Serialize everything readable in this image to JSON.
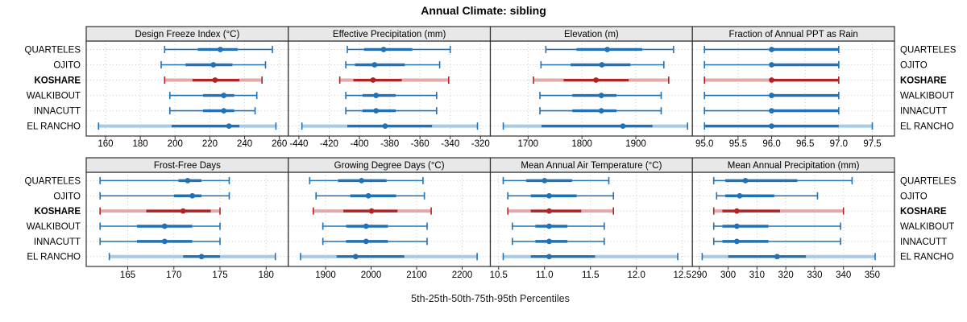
{
  "title": "Annual Climate: sibling",
  "caption": "5th-25th-50th-75th-95th Percentiles",
  "sites": [
    "QUARTELES",
    "OJITO",
    "KOSHARE",
    "WALKIBOUT",
    "INNACUTT",
    "EL RANCHO"
  ],
  "highlight_site": "KOSHARE",
  "band_style_sites": [
    "KOSHARE",
    "EL RANCHO"
  ],
  "colors": {
    "blue": "#2171B5",
    "blue_light": "#A6CBE3",
    "red": "#B22222",
    "red_light": "#E2A9A9",
    "strip_bg": "#E8E8E8",
    "panel_border": "#2F2F2F",
    "grid": "#CBCBCB",
    "text": "#000000"
  },
  "chart_data": [
    {
      "type": "dotplot-interval",
      "id": "design-freeze-index",
      "row": 0,
      "col": 0,
      "title": "Design Freeze Index (°C)",
      "xlim": [
        148.9,
        265.1
      ],
      "ticks": [
        160,
        180,
        200,
        220,
        240,
        260
      ],
      "tick_labels": [
        "160",
        "180",
        "200",
        "220",
        "240",
        "260"
      ],
      "series": [
        {
          "name": "QUARTELES",
          "p": [
            194,
            213,
            226,
            236,
            256
          ]
        },
        {
          "name": "OJITO",
          "p": [
            192,
            206,
            222,
            233,
            252
          ]
        },
        {
          "name": "KOSHARE",
          "p": [
            194,
            210,
            223,
            237,
            250
          ]
        },
        {
          "name": "WALKIBOUT",
          "p": [
            197,
            216,
            228,
            234,
            247
          ]
        },
        {
          "name": "INNACUTT",
          "p": [
            197,
            216,
            228,
            234,
            246
          ]
        },
        {
          "name": "EL RANCHO",
          "p": [
            156,
            198,
            231,
            237,
            258
          ]
        }
      ]
    },
    {
      "type": "dotplot-interval",
      "id": "effective-precipitation",
      "row": 0,
      "col": 1,
      "title": "Effective Precipitation (mm)",
      "xlim": [
        -447,
        -313.5
      ],
      "ticks": [
        -440,
        -420,
        -400,
        -380,
        -360,
        -340,
        -320
      ],
      "tick_labels": [
        "-440",
        "-420",
        "-400",
        "-380",
        "-360",
        "-340",
        "-320"
      ],
      "series": [
        {
          "name": "QUARTELES",
          "p": [
            -408,
            -397,
            -384,
            -365,
            -340
          ]
        },
        {
          "name": "OJITO",
          "p": [
            -409,
            -403,
            -390,
            -370,
            -347
          ]
        },
        {
          "name": "KOSHARE",
          "p": [
            -413,
            -404,
            -391,
            -372,
            -341
          ]
        },
        {
          "name": "WALKIBOUT",
          "p": [
            -409,
            -398,
            -389,
            -376,
            -349
          ]
        },
        {
          "name": "INNACUTT",
          "p": [
            -409,
            -398,
            -389,
            -376,
            -349
          ]
        },
        {
          "name": "EL RANCHO",
          "p": [
            -438,
            -408,
            -383,
            -352,
            -322
          ]
        }
      ]
    },
    {
      "type": "dotplot-interval",
      "id": "elevation",
      "row": 0,
      "col": 2,
      "title": "Elevation (m)",
      "xlim": [
        1630,
        2005
      ],
      "ticks": [
        1700,
        1800,
        1900
      ],
      "tick_labels": [
        "1700",
        "1800",
        "1900"
      ],
      "series": [
        {
          "name": "QUARTELES",
          "p": [
            1733,
            1790,
            1847,
            1912,
            1970
          ]
        },
        {
          "name": "OJITO",
          "p": [
            1724,
            1779,
            1837,
            1890,
            1952
          ]
        },
        {
          "name": "KOSHARE",
          "p": [
            1710,
            1766,
            1826,
            1887,
            1961
          ]
        },
        {
          "name": "WALKIBOUT",
          "p": [
            1722,
            1782,
            1836,
            1864,
            1947
          ]
        },
        {
          "name": "INNACUTT",
          "p": [
            1722,
            1782,
            1836,
            1864,
            1947
          ]
        },
        {
          "name": "EL RANCHO",
          "p": [
            1654,
            1725,
            1876,
            1931,
            1996
          ]
        }
      ]
    },
    {
      "type": "dotplot-interval",
      "id": "fraction-annual-ppt-rain",
      "row": 0,
      "col": 3,
      "title": "Fraction of Annual PPT as Rain",
      "xlim": [
        94.82,
        97.83
      ],
      "ticks": [
        95.0,
        95.5,
        96.0,
        96.5,
        97.0,
        97.5
      ],
      "tick_labels": [
        "95.0",
        "95.5",
        "96.0",
        "96.5",
        "97.0",
        "97.5"
      ],
      "series": [
        {
          "name": "QUARTELES",
          "p": [
            95,
            96,
            96,
            97,
            97
          ]
        },
        {
          "name": "OJITO",
          "p": [
            95,
            96,
            96,
            97,
            97
          ]
        },
        {
          "name": "KOSHARE",
          "p": [
            95,
            96,
            96,
            97,
            97
          ]
        },
        {
          "name": "WALKIBOUT",
          "p": [
            95,
            96,
            96,
            97,
            97
          ]
        },
        {
          "name": "INNACUTT",
          "p": [
            95,
            96,
            96,
            97,
            97
          ]
        },
        {
          "name": "EL RANCHO",
          "p": [
            95,
            95,
            96,
            97,
            97.5
          ]
        }
      ]
    },
    {
      "type": "dotplot-interval",
      "id": "frost-free-days",
      "row": 1,
      "col": 0,
      "title": "Frost-Free Days",
      "xlim": [
        160.5,
        182.4
      ],
      "ticks": [
        165,
        170,
        175,
        180
      ],
      "tick_labels": [
        "165",
        "170",
        "175",
        "180"
      ],
      "series": [
        {
          "name": "QUARTELES",
          "p": [
            162,
            170.5,
            171.5,
            173,
            176
          ]
        },
        {
          "name": "OJITO",
          "p": [
            162,
            170,
            172,
            173,
            176
          ]
        },
        {
          "name": "KOSHARE",
          "p": [
            162,
            167,
            171,
            174,
            175
          ]
        },
        {
          "name": "WALKIBOUT",
          "p": [
            162,
            166,
            169,
            172,
            175
          ]
        },
        {
          "name": "INNACUTT",
          "p": [
            162,
            166,
            169,
            172,
            175
          ]
        },
        {
          "name": "EL RANCHO",
          "p": [
            163,
            171,
            173,
            175,
            181
          ]
        }
      ]
    },
    {
      "type": "dotplot-interval",
      "id": "growing-degree-days",
      "row": 1,
      "col": 1,
      "title": "Growing Degree Days (°C)",
      "xlim": [
        1818,
        2262
      ],
      "ticks": [
        1900,
        2000,
        2100,
        2200
      ],
      "tick_labels": [
        "1900",
        "2000",
        "2100",
        "2200"
      ],
      "series": [
        {
          "name": "QUARTELES",
          "p": [
            1865,
            1927,
            1979,
            2034,
            2114
          ]
        },
        {
          "name": "OJITO",
          "p": [
            1879,
            1954,
            1994,
            2055,
            2117
          ]
        },
        {
          "name": "KOSHARE",
          "p": [
            1873,
            1939,
            2001,
            2058,
            2132
          ]
        },
        {
          "name": "WALKIBOUT",
          "p": [
            1894,
            1945,
            1989,
            2037,
            2123
          ]
        },
        {
          "name": "INNACUTT",
          "p": [
            1894,
            1945,
            1989,
            2037,
            2123
          ]
        },
        {
          "name": "EL RANCHO",
          "p": [
            1845,
            1924,
            1966,
            2073,
            2233
          ]
        }
      ]
    },
    {
      "type": "dotplot-interval",
      "id": "mean-annual-air-temperature",
      "row": 1,
      "col": 2,
      "title": "Mean Annual Air Temperature (°C)",
      "xlim": [
        10.41,
        12.61
      ],
      "ticks": [
        10.5,
        11.0,
        11.5,
        12.0,
        12.5
      ],
      "tick_labels": [
        "10.5",
        "11.0",
        "11.5",
        "12.0",
        "12.5"
      ],
      "series": [
        {
          "name": "QUARTELES",
          "p": [
            10.55,
            10.8,
            11.0,
            11.3,
            11.7
          ]
        },
        {
          "name": "OJITO",
          "p": [
            10.6,
            10.85,
            11.05,
            11.35,
            11.75
          ]
        },
        {
          "name": "KOSHARE",
          "p": [
            10.6,
            10.85,
            11.05,
            11.4,
            11.75
          ]
        },
        {
          "name": "WALKIBOUT",
          "p": [
            10.65,
            10.9,
            11.05,
            11.25,
            11.65
          ]
        },
        {
          "name": "INNACUTT",
          "p": [
            10.65,
            10.9,
            11.05,
            11.25,
            11.65
          ]
        },
        {
          "name": "EL RANCHO",
          "p": [
            10.55,
            10.85,
            11.05,
            11.55,
            12.45
          ]
        }
      ]
    },
    {
      "type": "dotplot-interval",
      "id": "mean-annual-precipitation",
      "row": 1,
      "col": 3,
      "title": "Mean Annual Precipitation (mm)",
      "xlim": [
        287.6,
        357.7
      ],
      "ticks": [
        290,
        300,
        310,
        320,
        330,
        340,
        350
      ],
      "tick_labels": [
        "290",
        "300",
        "310",
        "320",
        "330",
        "340",
        "350"
      ],
      "series": [
        {
          "name": "QUARTELES",
          "p": [
            295,
            299,
            306,
            324,
            343
          ]
        },
        {
          "name": "OJITO",
          "p": [
            296,
            299,
            304,
            316,
            331
          ]
        },
        {
          "name": "KOSHARE",
          "p": [
            295,
            298,
            303,
            318,
            340
          ]
        },
        {
          "name": "WALKIBOUT",
          "p": [
            295,
            298,
            303,
            314,
            339
          ]
        },
        {
          "name": "INNACUTT",
          "p": [
            295,
            298,
            303,
            314,
            339
          ]
        },
        {
          "name": "EL RANCHO",
          "p": [
            291,
            300,
            317,
            327,
            351
          ]
        }
      ]
    }
  ]
}
